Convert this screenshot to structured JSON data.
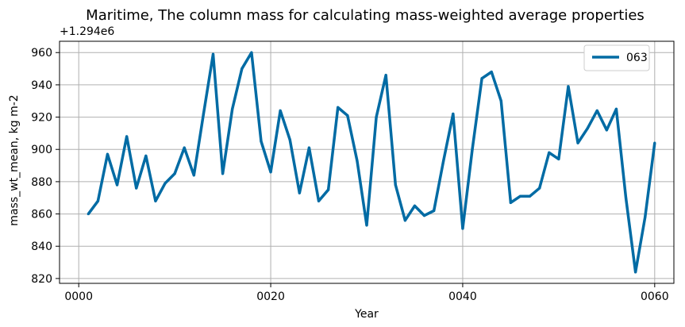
{
  "chart_data": {
    "type": "line",
    "title": "Maritime, The column mass for calculating mass-weighted average properties",
    "offset_text": "+1.294e6",
    "xlabel": "Year",
    "ylabel": "mass_wt_mean, kg m-2",
    "xlim": [
      -2,
      62
    ],
    "ylim": [
      817,
      967
    ],
    "x_ticks": [
      0,
      20,
      40,
      60
    ],
    "x_tick_labels": [
      "0000",
      "0020",
      "0040",
      "0060"
    ],
    "y_ticks": [
      820,
      840,
      860,
      880,
      900,
      920,
      940,
      960
    ],
    "y_tick_labels": [
      "820",
      "840",
      "860",
      "880",
      "900",
      "920",
      "940",
      "960"
    ],
    "grid": true,
    "legend_position": "upper right",
    "series": [
      {
        "name": "063",
        "color": "#006ba4",
        "x": [
          1,
          2,
          3,
          4,
          5,
          6,
          7,
          8,
          9,
          10,
          11,
          12,
          13,
          14,
          15,
          16,
          17,
          18,
          19,
          20,
          21,
          22,
          23,
          24,
          25,
          26,
          27,
          28,
          29,
          30,
          31,
          32,
          33,
          34,
          35,
          36,
          37,
          38,
          39,
          40,
          41,
          42,
          43,
          44,
          45,
          46,
          47,
          48,
          49,
          50,
          51,
          52,
          53,
          54,
          55,
          56,
          57,
          58,
          59,
          60
        ],
        "y": [
          860,
          868,
          897,
          878,
          908,
          876,
          896,
          868,
          879,
          885,
          901,
          884,
          922,
          959,
          885,
          925,
          950,
          960,
          905,
          886,
          924,
          906,
          873,
          901,
          868,
          875,
          926,
          921,
          893,
          853,
          920,
          946,
          878,
          856,
          865,
          859,
          862,
          893,
          922,
          851,
          900,
          944,
          948,
          930,
          867,
          871,
          871,
          876,
          898,
          894,
          939,
          904,
          913,
          924,
          912,
          925,
          870,
          824,
          858,
          904
        ]
      }
    ]
  }
}
